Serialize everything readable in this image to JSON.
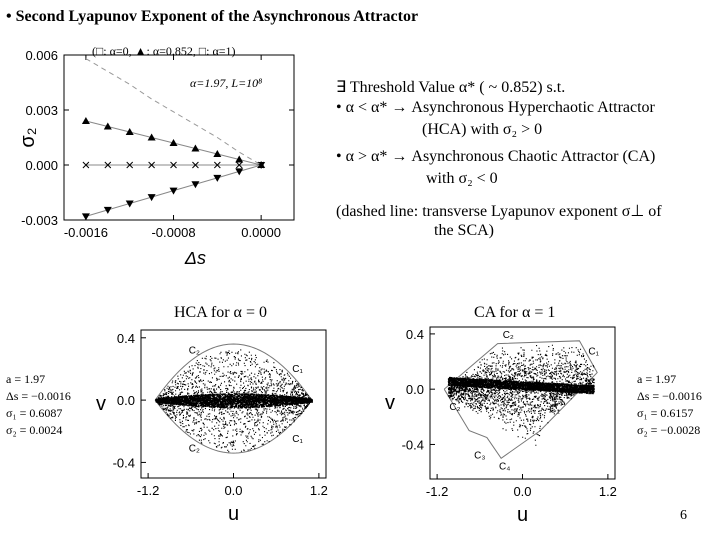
{
  "title": "Second Lyapunov Exponent of the Asynchronous Attractor",
  "title_bullet": "•",
  "chart_data": [
    {
      "type": "scatter",
      "legend_text": "(□: α=0, ▲: α=0.852, □: α=1)",
      "annotation": "α=1.97, L=10⁸",
      "xlabel": "Δs",
      "ylabel": "σ₂",
      "xlim": [
        -0.0018,
        0.0003
      ],
      "ylim": [
        -0.003,
        0.006
      ],
      "x_ticks": [
        -0.0016,
        -0.0008,
        0.0
      ],
      "x_tick_labels": [
        "-0.0016",
        "-0.0008",
        "0.0000"
      ],
      "y_ticks": [
        -0.003,
        0.0,
        0.003,
        0.006
      ],
      "y_tick_labels": [
        "-0.003",
        "0.000",
        "0.003",
        "0.006"
      ],
      "x": [
        -0.0016,
        -0.0014,
        -0.0012,
        -0.001,
        -0.0008,
        -0.0006,
        -0.0004,
        -0.0002,
        0.0
      ],
      "series": [
        {
          "marker": "triangle-up",
          "values": [
            0.0024,
            0.0021,
            0.0018,
            0.0015,
            0.0012,
            0.0009,
            0.0006,
            0.0003,
            0.0
          ]
        },
        {
          "marker": "cross",
          "values": [
            0.0,
            0.0,
            0.0,
            0.0,
            0.0,
            0.0,
            0.0,
            0.0,
            0.0
          ]
        },
        {
          "marker": "triangle-down",
          "values": [
            -0.0028,
            -0.00245,
            -0.0021,
            -0.00175,
            -0.0014,
            -0.00105,
            -0.0007,
            -0.00035,
            0.0
          ]
        },
        {
          "marker": "dashed",
          "values": [
            0.0058,
            0.0051,
            0.0044,
            0.0036,
            0.0029,
            0.0022,
            0.0015,
            0.0007,
            0.0
          ]
        }
      ]
    },
    {
      "type": "scatter",
      "title": "HCA for α = 0",
      "xlabel": "u",
      "ylabel": "v",
      "xlim": [
        -1.3,
        1.3
      ],
      "ylim": [
        -0.5,
        0.45
      ],
      "x_tick_labels": [
        "-1.2",
        "0.0",
        "1.2"
      ],
      "y_tick_labels": [
        "-0.4",
        "0.0",
        "0.4"
      ],
      "curve_labels": [
        "C₂",
        "C₁",
        "C₂",
        "C₁"
      ]
    },
    {
      "type": "scatter",
      "title": "CA for α = 1",
      "xlabel": "u",
      "ylabel": "v",
      "xlim": [
        -1.3,
        1.3
      ],
      "ylim": [
        -0.65,
        0.45
      ],
      "x_tick_labels": [
        "-1.2",
        "0.0",
        "1.2"
      ],
      "y_tick_labels": [
        "-0.4",
        "0.0",
        "0.4"
      ],
      "curve_labels": [
        "C₂",
        "C₁",
        "C₂",
        "C₁",
        "C₃",
        "C₄"
      ]
    }
  ],
  "right_text": {
    "line1": "∃ Threshold Value α* ( ~ 0.852) s.t.",
    "line2": "• α < α* → Asynchronous Hyperchaotic Attractor",
    "line3": "(HCA) with σ₂ > 0",
    "line4": "• α > α* → Asynchronous Chaotic Attractor (CA)",
    "line5": "with σ₂ < 0",
    "line6": "(dashed line: transverse Lyapunov exponent σ⊥ of",
    "line7": "the SCA)"
  },
  "left_params": {
    "l1": "a = 1.97",
    "l2": "Δs = −0.0016",
    "l3": "σ₁ = 0.6087",
    "l4": "σ₂ = 0.0024"
  },
  "right_params": {
    "l1": "a = 1.97",
    "l2": "Δs = −0.0016",
    "l3": "σ₁ = 0.6157",
    "l4": "σ₂ = −0.0028"
  },
  "page_number": "6"
}
